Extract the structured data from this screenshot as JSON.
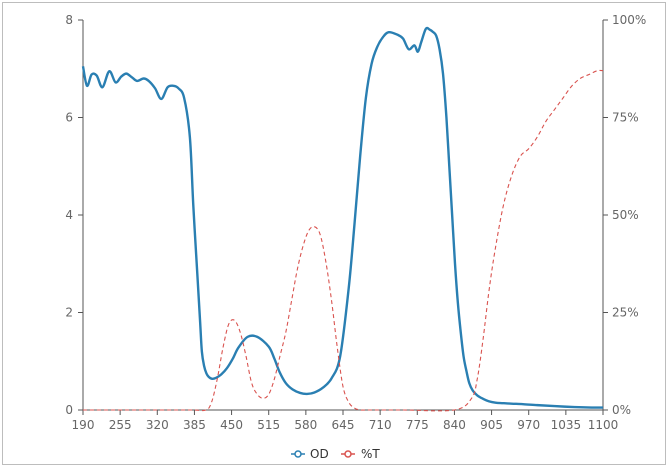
{
  "chart_data": {
    "type": "line",
    "x_ticks": [
      190,
      255,
      320,
      385,
      450,
      515,
      580,
      645,
      710,
      775,
      840,
      905,
      970,
      1035,
      1100
    ],
    "xlim": [
      190,
      1100
    ],
    "ylim_left": [
      0,
      8
    ],
    "yticks_left": [
      0,
      2,
      4,
      6,
      8
    ],
    "ytick_labels_left": [
      "0",
      "2",
      "4",
      "6",
      "8"
    ],
    "ylim_right": [
      0,
      100
    ],
    "yticks_right": [
      0,
      25,
      50,
      75,
      100
    ],
    "ytick_labels_right": [
      "0%",
      "25%",
      "50%",
      "75%",
      "100%"
    ],
    "grid": false,
    "legend_position": "bottom-center",
    "series": [
      {
        "name": "OD",
        "axis": "left",
        "color": "#2a7fb2",
        "style": "solid",
        "x": [
          190,
          197,
          205,
          214,
          224,
          236,
          247,
          257,
          266,
          276,
          285,
          296,
          305,
          316,
          327,
          338,
          348,
          357,
          367,
          377,
          383,
          390,
          395,
          398,
          402,
          406,
          410,
          416,
          423,
          432,
          442,
          452,
          462,
          478,
          495,
          515,
          525,
          534,
          545,
          557,
          570,
          582,
          595,
          610,
          625,
          640,
          655,
          665,
          675,
          685,
          695,
          705,
          715,
          725,
          740,
          750,
          760,
          770,
          776,
          782,
          790,
          797,
          802,
          808,
          814,
          820,
          826,
          831,
          836,
          841,
          846,
          851,
          856,
          861,
          866,
          872,
          880,
          890,
          900,
          912,
          925,
          940,
          960,
          985,
          1015,
          1050,
          1080,
          1100
        ],
        "values": [
          7.05,
          6.65,
          6.88,
          6.86,
          6.62,
          6.95,
          6.72,
          6.84,
          6.9,
          6.82,
          6.75,
          6.8,
          6.75,
          6.6,
          6.38,
          6.62,
          6.65,
          6.6,
          6.4,
          5.6,
          4.2,
          2.8,
          1.8,
          1.2,
          0.9,
          0.75,
          0.68,
          0.64,
          0.66,
          0.73,
          0.86,
          1.05,
          1.28,
          1.5,
          1.5,
          1.3,
          1.05,
          0.78,
          0.55,
          0.42,
          0.35,
          0.33,
          0.36,
          0.46,
          0.65,
          1.1,
          2.5,
          3.8,
          5.2,
          6.4,
          7.1,
          7.45,
          7.65,
          7.75,
          7.7,
          7.62,
          7.4,
          7.48,
          7.35,
          7.55,
          7.82,
          7.8,
          7.76,
          7.68,
          7.4,
          6.9,
          6.0,
          5.0,
          4.0,
          3.0,
          2.2,
          1.6,
          1.1,
          0.8,
          0.55,
          0.4,
          0.3,
          0.23,
          0.18,
          0.15,
          0.14,
          0.13,
          0.12,
          0.1,
          0.08,
          0.06,
          0.05,
          0.05
        ]
      },
      {
        "name": "%T",
        "axis": "right",
        "color": "#d9534f",
        "style": "dashed",
        "x": [
          190,
          300,
          380,
          405,
          415,
          425,
          435,
          445,
          455,
          465,
          475,
          485,
          495,
          505,
          515,
          525,
          535,
          545,
          555,
          565,
          575,
          585,
          595,
          605,
          615,
          625,
          635,
          645,
          655,
          665,
          675,
          685,
          700,
          750,
          840,
          870,
          880,
          890,
          900,
          910,
          925,
          940,
          955,
          970,
          985,
          1000,
          1015,
          1030,
          1045,
          1060,
          1075,
          1090,
          1100
        ],
        "values": [
          0,
          0,
          0,
          0,
          2,
          8,
          16,
          22,
          23,
          20,
          14,
          7,
          4,
          3,
          4,
          8,
          14,
          20,
          28,
          36,
          42,
          46,
          47,
          45,
          38,
          28,
          16,
          6,
          2,
          0.5,
          0,
          0,
          0,
          0,
          0,
          3,
          8,
          18,
          30,
          40,
          52,
          60,
          65,
          67,
          70,
          74,
          77,
          80,
          83,
          85,
          86,
          87,
          87
        ]
      }
    ]
  },
  "legend": {
    "items": [
      {
        "label": "OD",
        "color": "#2a7fb2"
      },
      {
        "label": "%T",
        "color": "#d9534f"
      }
    ]
  }
}
